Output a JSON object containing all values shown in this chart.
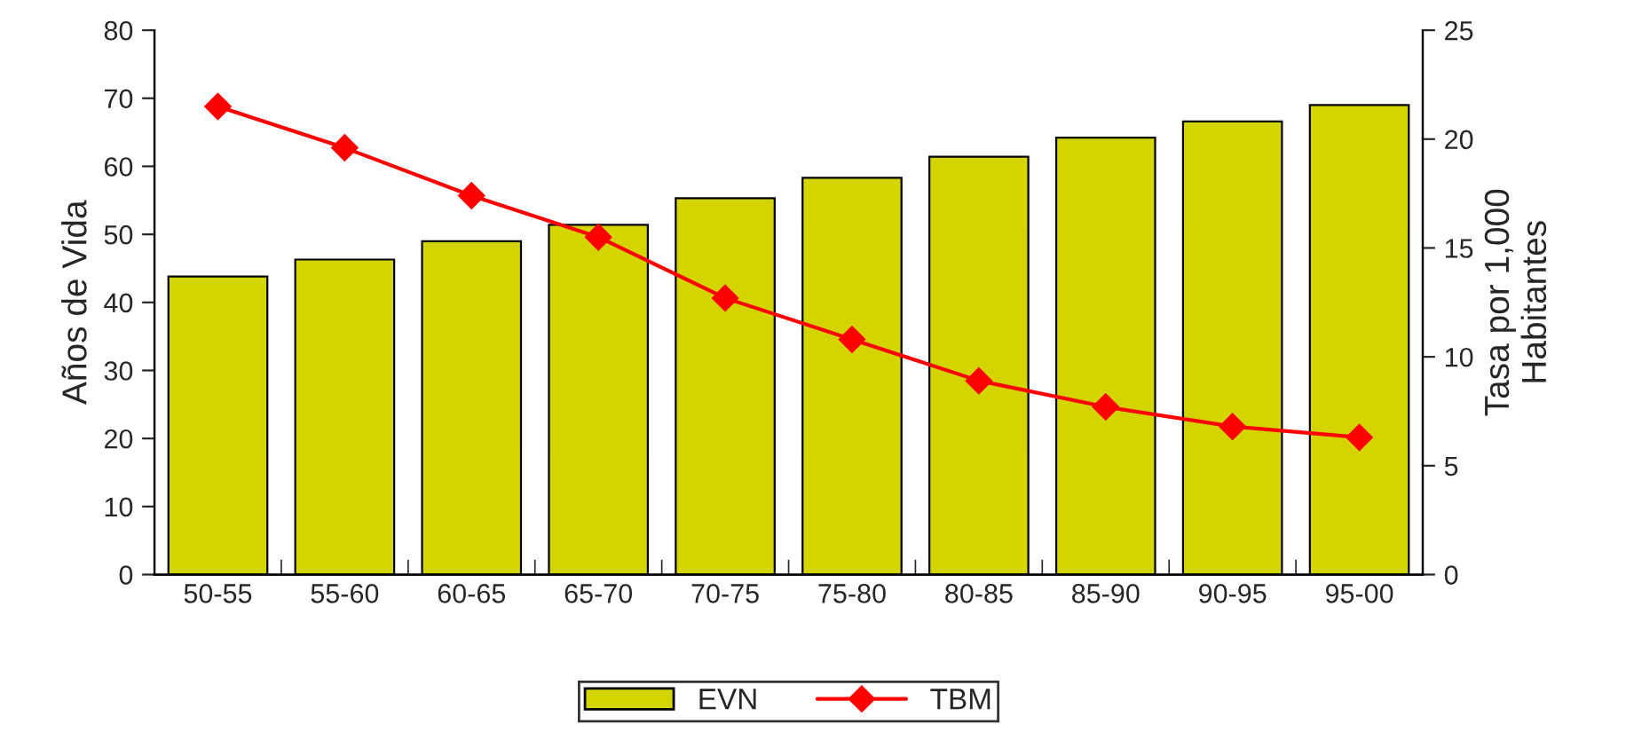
{
  "chart_data": {
    "type": "bar",
    "categories": [
      "50-55",
      "55-60",
      "60-65",
      "65-70",
      "70-75",
      "75-80",
      "80-85",
      "85-90",
      "90-95",
      "95-00"
    ],
    "ylabel": "Años de Vida",
    "y2label": "Tasa por 1,000\nHabitantes",
    "ylim": [
      0,
      80
    ],
    "yticks": [
      0,
      10,
      20,
      30,
      40,
      50,
      60,
      70,
      80
    ],
    "y2lim": [
      0,
      25
    ],
    "y2ticks": [
      0,
      5,
      10,
      15,
      20,
      25
    ],
    "series": [
      {
        "name": "EVN",
        "color": "#d4d400",
        "values": [
          43.8,
          46.3,
          49.0,
          51.4,
          55.3,
          58.3,
          61.4,
          64.2,
          66.6,
          69.0
        ]
      },
      {
        "name": "TBM",
        "type": "line",
        "axis": "y2",
        "color": "#ff0000",
        "marker": "diamond",
        "line_style": "solid",
        "values": [
          21.5,
          19.6,
          17.4,
          15.5,
          12.7,
          10.8,
          8.9,
          7.7,
          6.8,
          6.3
        ]
      }
    ],
    "legend": "bottom",
    "grid": false
  }
}
